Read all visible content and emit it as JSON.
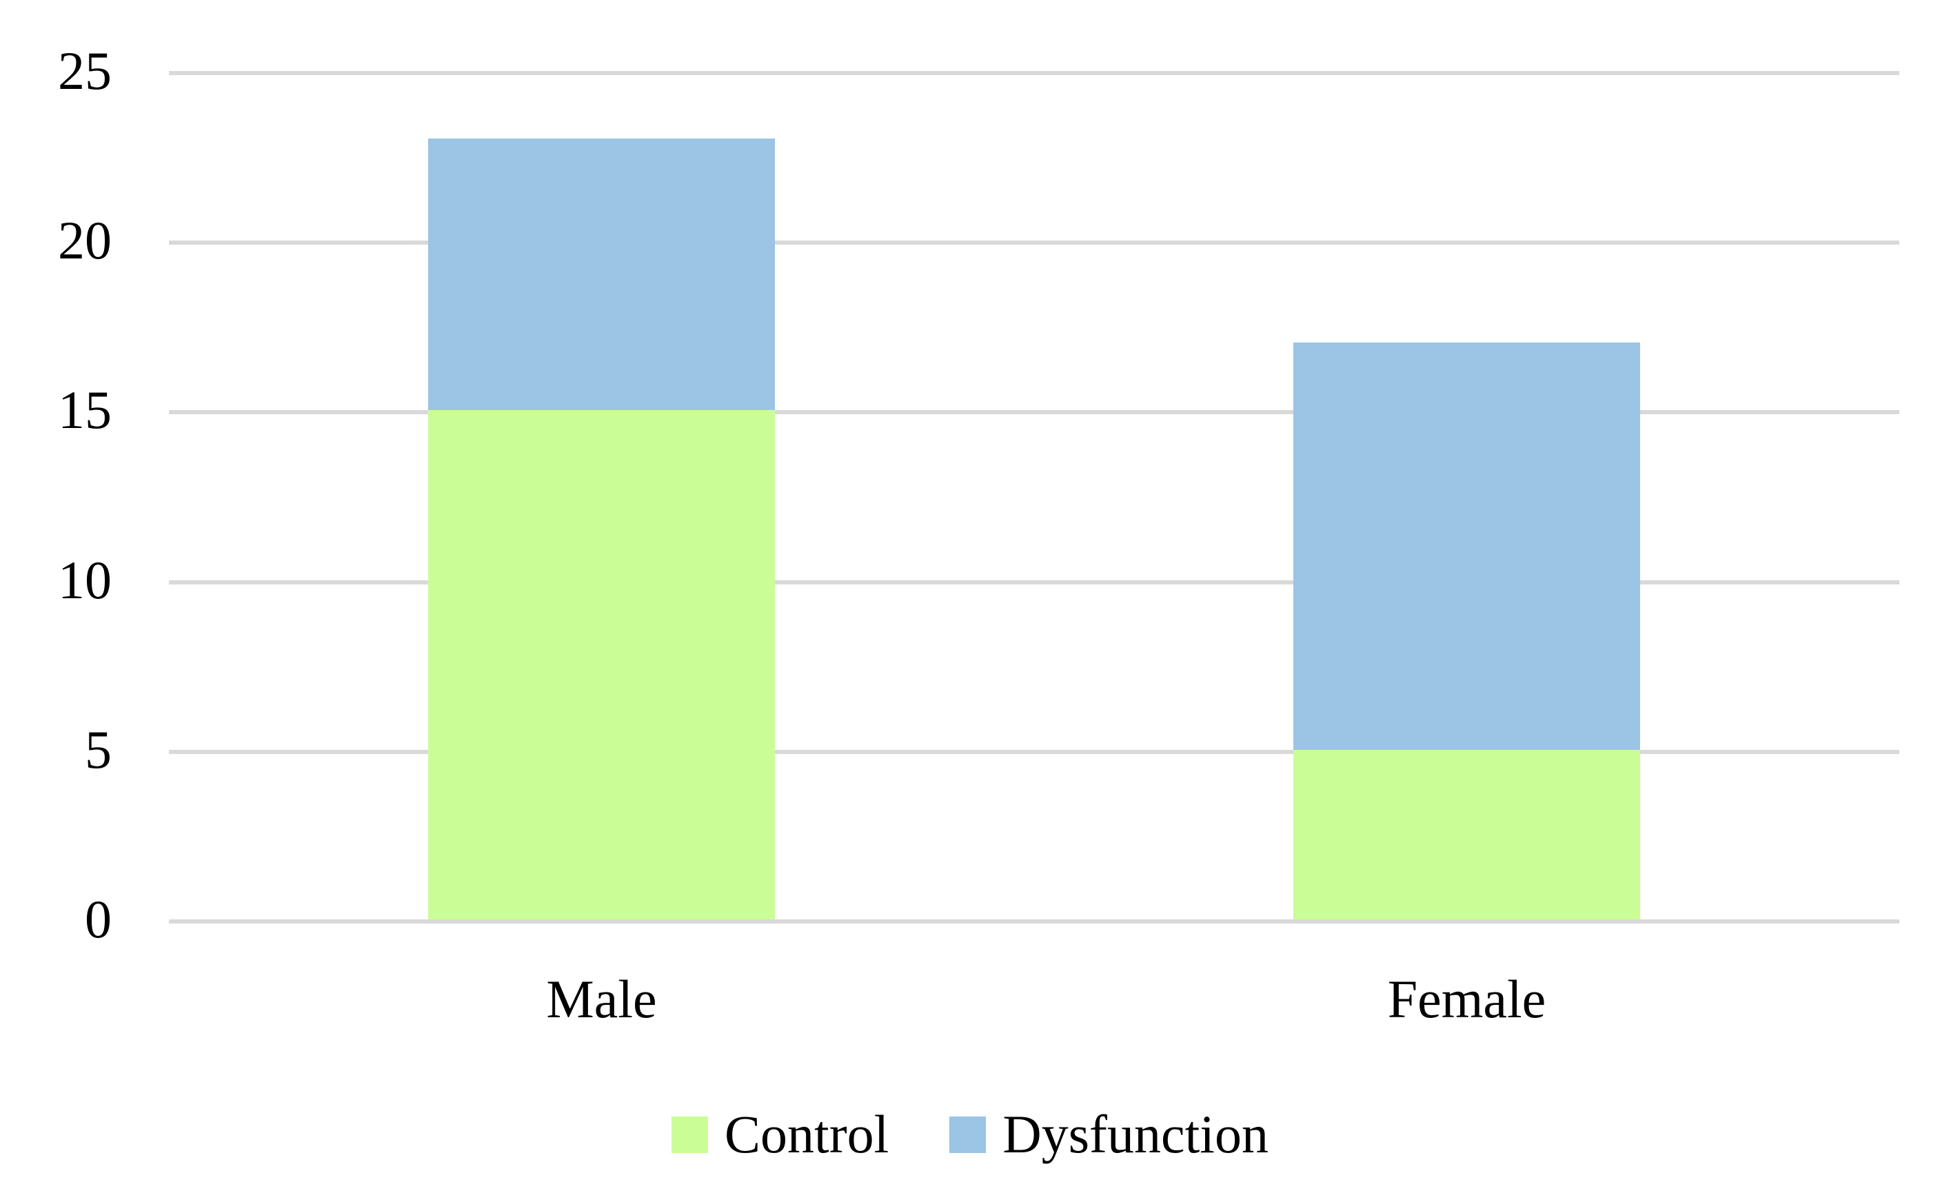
{
  "chart_data": {
    "type": "bar",
    "stacked": true,
    "orientation": "vertical",
    "title": "",
    "xlabel": "",
    "ylabel": "",
    "categories": [
      "Male",
      "Female"
    ],
    "series": [
      {
        "name": "Control",
        "color": "#CBFD96",
        "values": [
          15,
          5
        ]
      },
      {
        "name": "Dysfunction",
        "color": "#9BC4E5",
        "values": [
          8,
          12
        ]
      }
    ],
    "totals": [
      23,
      17
    ],
    "ylim": [
      0,
      25
    ],
    "yticks": [
      0,
      5,
      10,
      15,
      20,
      25
    ],
    "grid": true,
    "gridline_color": "#D9D9D9",
    "background_color": "#FFFFFF",
    "text_color": "#000000",
    "legend_position": "bottom-center"
  }
}
